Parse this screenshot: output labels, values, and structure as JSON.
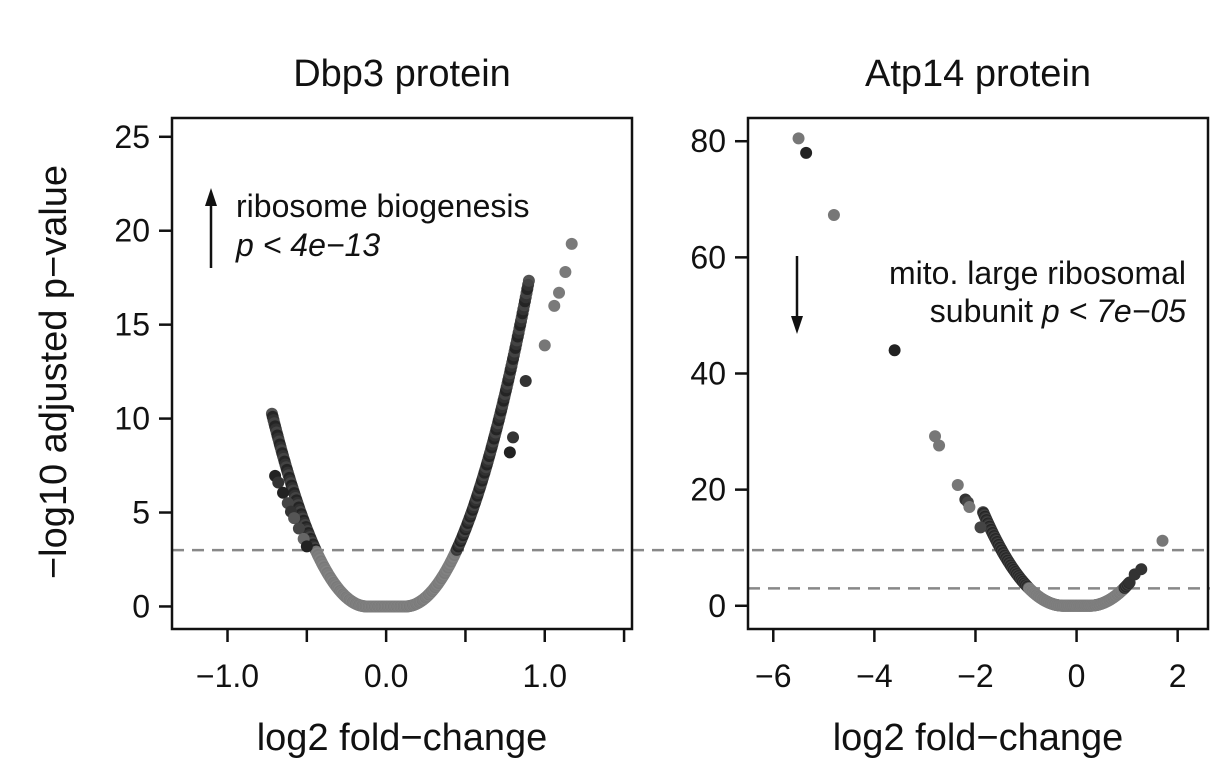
{
  "chart_data": [
    {
      "type": "scatter",
      "title": "Dbp3 protein",
      "xlabel": "log2 fold−change",
      "ylabel": "−log10 adjusted p−value",
      "xlim": [
        -1.35,
        1.55
      ],
      "ylim": [
        -1.2,
        26
      ],
      "xticks": [
        -1.0,
        -0.5,
        0.0,
        0.5,
        1.0,
        1.5
      ],
      "xtick_labels": [
        "−1.0",
        "",
        "0.0",
        "",
        "1.0",
        ""
      ],
      "yticks": [
        0,
        5,
        10,
        15,
        20,
        25
      ],
      "ytick_labels": [
        "0",
        "5",
        "10",
        "15",
        "20",
        "25"
      ],
      "threshold": 3.0,
      "curve": {
        "flat_halfwidth": 0.12,
        "coef": 28.5,
        "x_min": -0.72,
        "x_max": 0.9,
        "step": 0.005
      },
      "points": [
        {
          "x": -0.7,
          "y": 6.95,
          "shade": "#222222"
        },
        {
          "x": -0.68,
          "y": 6.6,
          "shade": "#333333"
        },
        {
          "x": -0.65,
          "y": 6.05,
          "shade": "#222222"
        },
        {
          "x": -0.62,
          "y": 5.5,
          "shade": "#444444"
        },
        {
          "x": -0.6,
          "y": 5.05,
          "shade": "#333333"
        },
        {
          "x": -0.58,
          "y": 4.7,
          "shade": "#555555"
        },
        {
          "x": -0.55,
          "y": 4.15,
          "shade": "#444444"
        },
        {
          "x": -0.52,
          "y": 3.6,
          "shade": "#666666"
        },
        {
          "x": -0.5,
          "y": 3.2,
          "shade": "#222222"
        },
        {
          "x": 0.88,
          "y": 12.0,
          "shade": "#333333"
        },
        {
          "x": 0.8,
          "y": 9.0,
          "shade": "#333333"
        },
        {
          "x": 0.78,
          "y": 8.2,
          "shade": "#222222"
        },
        {
          "x": 1.0,
          "y": 13.9,
          "shade": "#777777"
        },
        {
          "x": 1.06,
          "y": 16.0,
          "shade": "#7a7a7a"
        },
        {
          "x": 1.09,
          "y": 16.7,
          "shade": "#7a7a7a"
        },
        {
          "x": 1.13,
          "y": 17.8,
          "shade": "#7a7a7a"
        },
        {
          "x": 1.17,
          "y": 19.3,
          "shade": "#7a7a7a"
        }
      ],
      "annotation": {
        "direction": "up",
        "line1": "ribosome biogenesis",
        "line2": "p < 4e−13"
      }
    },
    {
      "type": "scatter",
      "title": "Atp14 protein",
      "xlabel": "log2 fold−change",
      "ylabel": "",
      "xlim": [
        -6.5,
        2.6
      ],
      "ylim": [
        -4,
        84
      ],
      "xticks": [
        -6,
        -4,
        -2,
        0,
        2
      ],
      "xtick_labels": [
        "−6",
        "−4",
        "−2",
        "0",
        "2"
      ],
      "yticks": [
        0,
        20,
        40,
        60,
        80
      ],
      "ytick_labels": [
        "0",
        "20",
        "40",
        "60",
        "80"
      ],
      "threshold": 3.0,
      "curve": {
        "flat_halfwidth": 0.25,
        "coef": 6.3,
        "x_min": -1.85,
        "x_max": 1.05,
        "step": 0.01
      },
      "points": [
        {
          "x": -5.5,
          "y": 80.5,
          "shade": "#777777"
        },
        {
          "x": -5.35,
          "y": 78.0,
          "shade": "#222222"
        },
        {
          "x": -4.8,
          "y": 67.3,
          "shade": "#777777"
        },
        {
          "x": -3.6,
          "y": 44.0,
          "shade": "#222222"
        },
        {
          "x": -2.8,
          "y": 29.2,
          "shade": "#777777"
        },
        {
          "x": -2.72,
          "y": 27.6,
          "shade": "#777777"
        },
        {
          "x": -2.35,
          "y": 20.8,
          "shade": "#777777"
        },
        {
          "x": -2.2,
          "y": 18.3,
          "shade": "#333333"
        },
        {
          "x": -2.15,
          "y": 17.8,
          "shade": "#444444"
        },
        {
          "x": -2.12,
          "y": 17.0,
          "shade": "#777777"
        },
        {
          "x": -1.9,
          "y": 13.5,
          "shade": "#444444"
        },
        {
          "x": 1.15,
          "y": 5.4,
          "shade": "#333333"
        },
        {
          "x": 1.28,
          "y": 6.3,
          "shade": "#333333"
        },
        {
          "x": 1.7,
          "y": 11.2,
          "shade": "#777777"
        }
      ],
      "annotation": {
        "direction": "down",
        "line1": "mito. large ribosomal",
        "line2_plain": "subunit ",
        "line2_italic": "p < 7e−05"
      }
    }
  ]
}
